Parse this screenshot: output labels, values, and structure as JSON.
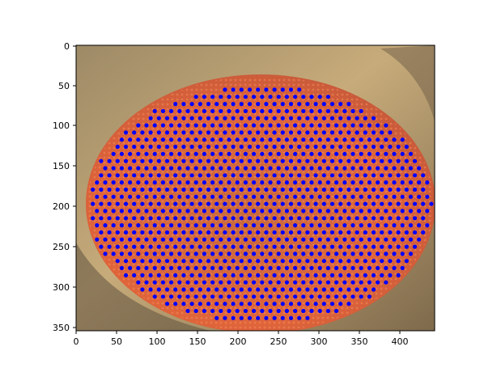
{
  "chart_data": {
    "type": "scatter",
    "title": "",
    "xlabel": "",
    "ylabel": "",
    "xlim": [
      0,
      443
    ],
    "ylim": [
      355,
      -5
    ],
    "y_axis_inverted": true,
    "grid": false,
    "legend": "none",
    "background_image": "fly compound eye micrograph (orange ommatidia lattice on tan/brown head)",
    "x_ticks": [
      "0",
      "50",
      "100",
      "150",
      "200",
      "250",
      "300",
      "350",
      "400"
    ],
    "y_ticks": [
      "0",
      "50",
      "100",
      "150",
      "200",
      "250",
      "300",
      "350"
    ],
    "series": [
      {
        "marker_color": "#0000ff",
        "marker": "circle"
      }
    ],
    "lattice": {
      "origin": [
        240,
        150
      ],
      "basis_a": [
        10.2,
        0
      ],
      "basis_b": [
        5.1,
        9.0
      ],
      "ellipse_center": [
        228,
        196
      ],
      "ellipse_radii": [
        212,
        150
      ]
    }
  },
  "colors": {
    "marker": "#0000ff",
    "eye": "#d9643c",
    "head": "#b89b6e",
    "axes": "#000000"
  }
}
